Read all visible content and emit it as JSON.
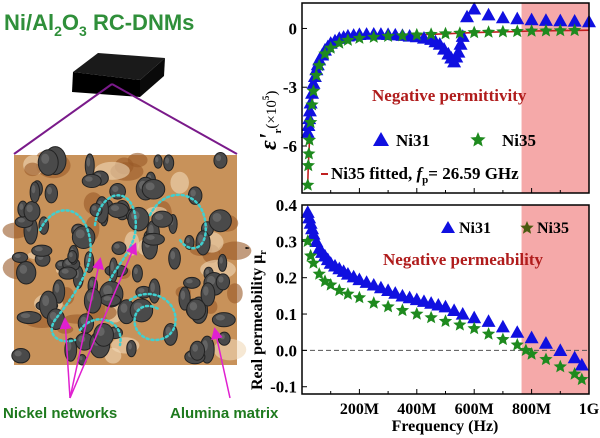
{
  "figure": {
    "title_main": "Ni/Al",
    "title_sub1": "2",
    "title_mid": "O",
    "title_sub2": "3",
    "title_end": " RC-DNMs",
    "label_nickel": "Nickel networks",
    "label_alumina": "Alumina matrix",
    "colors": {
      "title_green": "#2f8f3a",
      "label_green": "#1e7a1e",
      "arrow_magenta": "#e020d0",
      "zoom_line_purple": "#7a1a8a",
      "network_cyan": "#40d0d0",
      "matrix_tan": "#c8925a",
      "particle_gray": "#4a4a4a"
    }
  },
  "chart_data": [
    {
      "type": "scatter",
      "ylabel_symbol": "ε'",
      "ylabel_sub": "r",
      "ylabel_unit": "(×10",
      "ylabel_exp": "5",
      "ylabel_close": ")",
      "xlim": [
        0,
        1000
      ],
      "xunit": "MHz",
      "ylim": [
        -8.4,
        1.3
      ],
      "yticks": [
        "0",
        "-3",
        "-6"
      ],
      "ytick_values": [
        0,
        -3,
        -6
      ],
      "xtick_values": [
        200,
        400,
        600,
        800,
        1000
      ],
      "shaded_region": {
        "x": [
          765,
          1000
        ],
        "color": "#f4a0a0"
      },
      "annotation": "Negative permittivity",
      "annotation_color": "#b01c1c",
      "series": [
        {
          "name": "Ni31",
          "marker": "triangle",
          "color": "#1010e0",
          "x": [
            20,
            25,
            30,
            40,
            50,
            60,
            80,
            100,
            130,
            160,
            200,
            250,
            300,
            350,
            400,
            450,
            480,
            510,
            530,
            545,
            560,
            575,
            600,
            650,
            700,
            750,
            800,
            850,
            900,
            950,
            1000
          ],
          "y": [
            -5.3,
            -4.6,
            -3.8,
            -2.8,
            -2.1,
            -1.6,
            -1.1,
            -0.75,
            -0.5,
            -0.38,
            -0.3,
            -0.28,
            -0.3,
            -0.35,
            -0.42,
            -0.55,
            -0.8,
            -1.3,
            -1.7,
            -1.2,
            -0.4,
            0.6,
            1.0,
            0.7,
            0.55,
            0.5,
            0.45,
            0.42,
            0.4,
            0.38,
            0.35
          ]
        },
        {
          "name": "Ni35",
          "marker": "star",
          "color": "#1e8a1e",
          "x": [
            20,
            22,
            24,
            26,
            30,
            35,
            40,
            50,
            60,
            80,
            100,
            130,
            160,
            200,
            250,
            300,
            350,
            400,
            450,
            500,
            550,
            600,
            650,
            700,
            750,
            800,
            850,
            900,
            950
          ],
          "y": [
            -8.0,
            -7.0,
            -6.4,
            -5.7,
            -4.8,
            -3.9,
            -3.2,
            -2.4,
            -1.9,
            -1.3,
            -1.0,
            -0.75,
            -0.6,
            -0.5,
            -0.45,
            -0.4,
            -0.37,
            -0.33,
            -0.3,
            -0.27,
            -0.24,
            -0.21,
            -0.19,
            -0.17,
            -0.15,
            -0.13,
            -0.12,
            -0.11,
            -0.1
          ]
        },
        {
          "name": "Ni35 fitted",
          "marker": "line",
          "color": "#c02020",
          "fp": "26.59 GHz"
        }
      ],
      "legend": {
        "ni31": "Ni31",
        "ni35": "Ni35",
        "fit_prefix": "Ni35 fitted, ",
        "fit_f": "f",
        "fit_sub": "p",
        "fit_suffix": "= 26.59 GHz"
      }
    },
    {
      "type": "scatter",
      "ylabel": "Real permeability μ",
      "ylabel_sub": "r",
      "ylabel_prime": "'",
      "xlabel": "Frequency (Hz)",
      "xlim": [
        0,
        1000
      ],
      "xunit": "MHz",
      "xticks": [
        "200M",
        "400M",
        "600M",
        "800M",
        "1G"
      ],
      "xtick_values": [
        200,
        400,
        600,
        800,
        1000
      ],
      "ylim": [
        -0.12,
        0.4
      ],
      "yticks": [
        "0.4",
        "0.3",
        "0.2",
        "0.1",
        "0.0",
        "-0.1"
      ],
      "ytick_values": [
        0.4,
        0.3,
        0.2,
        0.1,
        0.0,
        -0.1
      ],
      "reference_line_y": 0,
      "shaded_region": {
        "x": [
          765,
          1000
        ],
        "color": "#f4a0a0"
      },
      "annotation": "Negative permeability",
      "annotation_color": "#b01c1c",
      "series": [
        {
          "name": "Ni31",
          "marker": "triangle",
          "color": "#1010e0",
          "x": [
            20,
            30,
            40,
            60,
            80,
            100,
            130,
            160,
            200,
            250,
            300,
            350,
            400,
            450,
            500,
            560,
            600,
            650,
            700,
            750,
            800,
            850,
            900,
            950,
            975
          ],
          "y": [
            0.38,
            0.35,
            0.32,
            0.28,
            0.26,
            0.24,
            0.225,
            0.21,
            0.195,
            0.18,
            0.165,
            0.15,
            0.14,
            0.13,
            0.12,
            0.1,
            0.09,
            0.08,
            0.065,
            0.05,
            0.035,
            0.02,
            0.0,
            -0.02,
            -0.04
          ]
        },
        {
          "name": "Ni35",
          "marker": "star",
          "color": "#1e8a1e",
          "x": [
            20,
            30,
            40,
            60,
            80,
            100,
            130,
            160,
            200,
            250,
            300,
            350,
            400,
            450,
            500,
            550,
            600,
            650,
            700,
            750,
            780,
            800,
            850,
            900,
            950,
            975
          ],
          "y": [
            0.3,
            0.26,
            0.24,
            0.21,
            0.19,
            0.18,
            0.165,
            0.155,
            0.145,
            0.13,
            0.12,
            0.11,
            0.1,
            0.09,
            0.08,
            0.07,
            0.06,
            0.045,
            0.03,
            0.015,
            0.0,
            -0.01,
            -0.025,
            -0.045,
            -0.065,
            -0.08
          ]
        }
      ],
      "legend": {
        "ni31": "Ni31",
        "ni35": "Ni35"
      }
    }
  ]
}
